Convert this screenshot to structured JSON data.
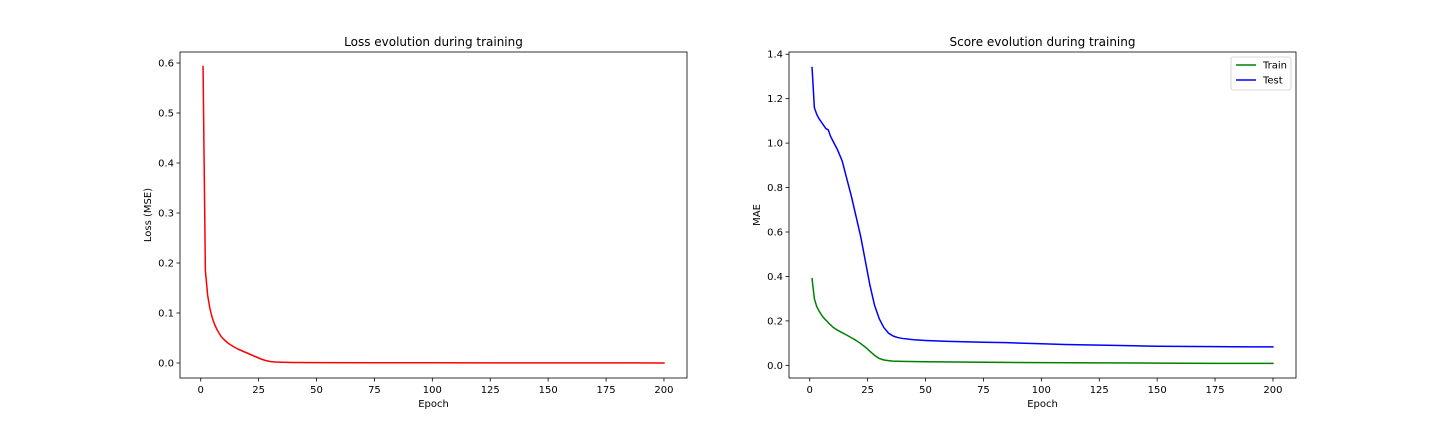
{
  "chart_data": [
    {
      "type": "line",
      "title": "Loss evolution during training",
      "xlabel": "Epoch",
      "ylabel": "Loss (MSE)",
      "xlim": [
        -8.95,
        209.95
      ],
      "ylim": [
        -0.03,
        0.622
      ],
      "xticks": [
        0,
        25,
        50,
        75,
        100,
        125,
        150,
        175,
        200
      ],
      "yticks": [
        0.0,
        0.1,
        0.2,
        0.3,
        0.4,
        0.5,
        0.6
      ],
      "ytick_labels": [
        "0.0",
        "0.1",
        "0.2",
        "0.3",
        "0.4",
        "0.5",
        "0.6"
      ],
      "legend": null,
      "series": [
        {
          "name": "Loss",
          "color": "#ff0000",
          "x": [
            1,
            2,
            3,
            4,
            5,
            6,
            7,
            8,
            9,
            10,
            12,
            14,
            16,
            18,
            20,
            22,
            24,
            26,
            28,
            30,
            32,
            35,
            40,
            50,
            75,
            100,
            125,
            150,
            175,
            200
          ],
          "y": [
            0.593,
            0.185,
            0.135,
            0.108,
            0.09,
            0.077,
            0.067,
            0.059,
            0.052,
            0.047,
            0.039,
            0.033,
            0.028,
            0.024,
            0.02,
            0.016,
            0.012,
            0.008,
            0.005,
            0.003,
            0.002,
            0.0015,
            0.001,
            0.0008,
            0.0005,
            0.0004,
            0.0003,
            0.0002,
            0.0002,
            0.0001
          ]
        }
      ]
    },
    {
      "type": "line",
      "title": "Score evolution during training",
      "xlabel": "Epoch",
      "ylabel": "MAE",
      "xlim": [
        -8.95,
        209.95
      ],
      "ylim": [
        -0.057,
        1.41
      ],
      "xticks": [
        0,
        25,
        50,
        75,
        100,
        125,
        150,
        175,
        200
      ],
      "yticks": [
        0.0,
        0.2,
        0.4,
        0.6,
        0.8,
        1.0,
        1.2,
        1.4
      ],
      "ytick_labels": [
        "0.0",
        "0.2",
        "0.4",
        "0.6",
        "0.8",
        "1.0",
        "1.2",
        "1.4"
      ],
      "legend": {
        "position": "top-right",
        "entries": [
          "Train",
          "Test"
        ]
      },
      "series": [
        {
          "name": "Train",
          "color": "#008000",
          "x": [
            1,
            2,
            3,
            4,
            5,
            6,
            8,
            10,
            12,
            14,
            16,
            18,
            20,
            22,
            24,
            26,
            28,
            30,
            32,
            34,
            36,
            40,
            50,
            75,
            100,
            125,
            150,
            175,
            200
          ],
          "y": [
            0.39,
            0.3,
            0.265,
            0.245,
            0.228,
            0.214,
            0.192,
            0.172,
            0.158,
            0.147,
            0.136,
            0.124,
            0.112,
            0.098,
            0.082,
            0.063,
            0.045,
            0.031,
            0.024,
            0.021,
            0.019,
            0.018,
            0.016,
            0.014,
            0.012,
            0.011,
            0.01,
            0.009,
            0.009
          ]
        },
        {
          "name": "Test",
          "color": "#0000ff",
          "x": [
            1,
            2,
            3,
            4,
            5,
            6,
            7,
            8,
            9,
            10,
            12,
            14,
            16,
            18,
            20,
            22,
            24,
            26,
            28,
            30,
            32,
            34,
            36,
            38,
            40,
            45,
            50,
            60,
            75,
            85,
            100,
            110,
            125,
            140,
            150,
            175,
            190,
            200
          ],
          "y": [
            1.34,
            1.16,
            1.13,
            1.11,
            1.095,
            1.08,
            1.065,
            1.06,
            1.03,
            1.01,
            0.97,
            0.92,
            0.84,
            0.76,
            0.67,
            0.58,
            0.47,
            0.36,
            0.27,
            0.21,
            0.17,
            0.145,
            0.132,
            0.125,
            0.121,
            0.115,
            0.112,
            0.108,
            0.104,
            0.102,
            0.097,
            0.094,
            0.091,
            0.088,
            0.086,
            0.084,
            0.083,
            0.083
          ]
        }
      ]
    }
  ]
}
